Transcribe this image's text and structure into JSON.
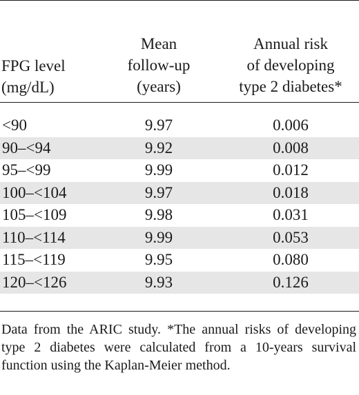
{
  "table": {
    "headers": {
      "fpg": [
        "FPG level",
        "(mg/dL)"
      ],
      "followup": [
        "Mean",
        "follow-up",
        "(years)"
      ],
      "risk": [
        "Annual risk",
        "of developing",
        "type 2 diabetes*"
      ]
    },
    "rows": [
      {
        "fpg": "<90",
        "followup": "9.97",
        "risk": "0.006"
      },
      {
        "fpg": "90–<94",
        "followup": "9.92",
        "risk": "0.008"
      },
      {
        "fpg": "95–<99",
        "followup": "9.99",
        "risk": "0.012"
      },
      {
        "fpg": "100–<104",
        "followup": "9.97",
        "risk": "0.018"
      },
      {
        "fpg": "105–<109",
        "followup": "9.98",
        "risk": "0.031"
      },
      {
        "fpg": "110–<114",
        "followup": "9.99",
        "risk": "0.053"
      },
      {
        "fpg": "115–<119",
        "followup": "9.95",
        "risk": "0.080"
      },
      {
        "fpg": "120–<126",
        "followup": "9.93",
        "risk": "0.126"
      }
    ],
    "footnote": "Data from the ARIC study. *The annual risks of developing type 2 diabetes were calculated from a 10-years survival function using the Kaplan-Meier method.",
    "shade_color": "#e6e6e6"
  }
}
